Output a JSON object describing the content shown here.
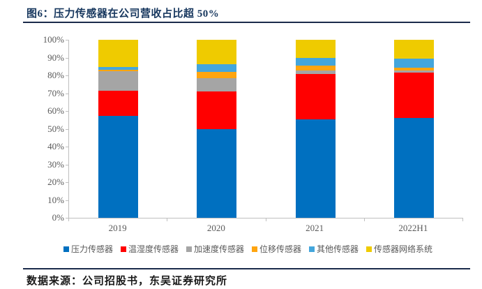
{
  "title": "图6：压力传感器在公司营收占比超 50%",
  "footer": {
    "source": "数据来源：公司招股书，东吴证券研究所"
  },
  "colors": {
    "accent_navy": "#17375E",
    "rule_line": "#1B2B4B",
    "axis_line": "#BFBFBF",
    "axis_text": "#595959"
  },
  "chart_data": {
    "type": "bar",
    "stacked": true,
    "title": "图6：压力传感器在公司营收占比超 50%",
    "categories": [
      "2019",
      "2020",
      "2021",
      "2022H1"
    ],
    "series": [
      {
        "name": "压力传感器",
        "color": "#0070C0",
        "values": [
          57.3,
          50.0,
          55.2,
          56.1
        ]
      },
      {
        "name": "温湿度传感器",
        "color": "#FF0000",
        "values": [
          14.2,
          21.1,
          25.7,
          25.5
        ]
      },
      {
        "name": "加速度传感器",
        "color": "#A5A5A5",
        "values": [
          11.0,
          7.3,
          2.0,
          1.3
        ]
      },
      {
        "name": "位移传感器",
        "color": "#FFA510",
        "values": [
          0.8,
          3.4,
          2.6,
          1.5
        ]
      },
      {
        "name": "其他传感器",
        "color": "#44A6DC",
        "values": [
          1.6,
          4.4,
          4.4,
          5.2
        ]
      },
      {
        "name": "传感器网络系统",
        "color": "#EFCB00",
        "values": [
          15.1,
          13.8,
          10.1,
          10.4
        ]
      }
    ],
    "xlabel": "",
    "ylabel": "",
    "ylim": [
      0,
      100
    ],
    "yticks": [
      "0%",
      "10%",
      "20%",
      "30%",
      "40%",
      "50%",
      "60%",
      "70%",
      "80%",
      "90%",
      "100%"
    ],
    "grid": false,
    "legend_position": "bottom"
  }
}
